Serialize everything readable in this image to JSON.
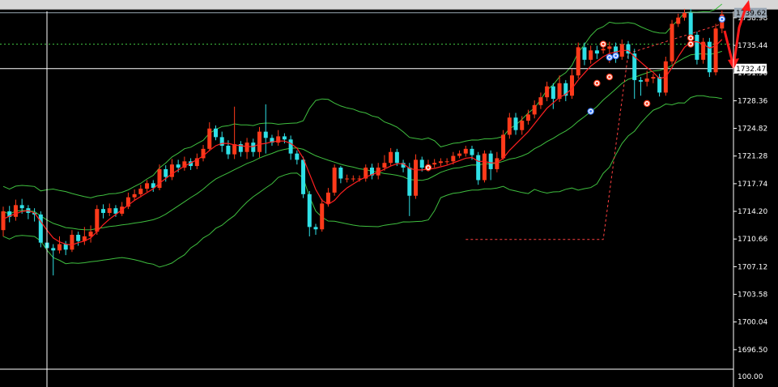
{
  "chart_data": {
    "type": "candlestick",
    "title": "",
    "xlabel": "",
    "ylabel": "",
    "ylim": [
      1694.0,
      1739.8
    ],
    "y_ticks": [
      "1738.98",
      "1735.44",
      "1731.90",
      "1728.36",
      "1724.82",
      "1721.28",
      "1717.74",
      "1714.20",
      "1710.66",
      "1707.12",
      "1703.58",
      "1700.04",
      "1696.50"
    ],
    "y_tick_values": [
      1738.98,
      1735.44,
      1731.9,
      1728.36,
      1724.82,
      1721.28,
      1717.74,
      1714.2,
      1710.66,
      1707.12,
      1703.58,
      1700.04,
      1696.5
    ],
    "price_labels": [
      {
        "text": "1739.62",
        "value": 1739.62,
        "color": "#9aa7b4"
      },
      {
        "text": "1732.47",
        "value": 1732.47,
        "color": "#ffffff"
      }
    ],
    "indicator_label": "100.00",
    "bull_color": "#ff3a1a",
    "bear_color": "#2fe0e6",
    "band_color": "#3fbf3f",
    "ma_color": "#ff2020",
    "candles": [
      [
        1711.8,
        1714.2,
        1711.0,
        1714.8
      ],
      [
        1714.2,
        1713.5,
        1712.8,
        1714.9
      ],
      [
        1713.5,
        1715.0,
        1713.0,
        1715.7
      ],
      [
        1715.0,
        1714.6,
        1713.9,
        1715.8
      ],
      [
        1714.6,
        1714.0,
        1713.2,
        1715.0
      ],
      [
        1714.0,
        1713.8,
        1712.9,
        1714.6
      ],
      [
        1713.8,
        1710.2,
        1709.6,
        1714.2
      ],
      [
        1710.2,
        1709.5,
        1708.9,
        1710.8
      ],
      [
        1709.5,
        1709.2,
        1706.0,
        1710.0
      ],
      [
        1709.2,
        1710.0,
        1708.8,
        1711.0
      ],
      [
        1710.0,
        1709.3,
        1708.6,
        1710.4
      ],
      [
        1709.3,
        1711.2,
        1709.0,
        1711.8
      ],
      [
        1711.2,
        1710.4,
        1709.8,
        1711.6
      ],
      [
        1710.4,
        1711.0,
        1709.9,
        1712.2
      ],
      [
        1711.0,
        1711.6,
        1710.2,
        1712.4
      ],
      [
        1711.6,
        1714.5,
        1711.2,
        1715.0
      ],
      [
        1714.5,
        1714.0,
        1713.3,
        1715.1
      ],
      [
        1714.0,
        1714.6,
        1713.6,
        1715.2
      ],
      [
        1714.6,
        1713.9,
        1713.5,
        1715.0
      ],
      [
        1713.9,
        1714.8,
        1713.6,
        1715.4
      ],
      [
        1714.8,
        1716.0,
        1714.5,
        1716.6
      ],
      [
        1716.0,
        1716.4,
        1715.6,
        1717.0
      ],
      [
        1716.4,
        1717.1,
        1716.0,
        1717.6
      ],
      [
        1717.1,
        1717.8,
        1716.7,
        1718.2
      ],
      [
        1717.8,
        1717.2,
        1716.7,
        1718.2
      ],
      [
        1717.2,
        1719.6,
        1716.9,
        1720.2
      ],
      [
        1719.6,
        1718.6,
        1718.0,
        1720.1
      ],
      [
        1718.6,
        1720.2,
        1718.2,
        1720.9
      ],
      [
        1720.2,
        1719.8,
        1719.2,
        1720.8
      ],
      [
        1719.8,
        1720.6,
        1719.4,
        1721.2
      ],
      [
        1720.6,
        1720.0,
        1719.5,
        1721.0
      ],
      [
        1720.0,
        1721.0,
        1719.6,
        1721.6
      ],
      [
        1721.0,
        1722.2,
        1720.6,
        1722.7
      ],
      [
        1722.2,
        1724.8,
        1721.9,
        1725.6
      ],
      [
        1724.8,
        1723.7,
        1723.3,
        1725.2
      ],
      [
        1723.7,
        1722.6,
        1721.8,
        1724.4
      ],
      [
        1722.6,
        1721.5,
        1720.9,
        1723.3
      ],
      [
        1721.5,
        1722.8,
        1720.9,
        1727.6
      ],
      [
        1722.8,
        1721.8,
        1721.2,
        1723.2
      ],
      [
        1721.8,
        1723.0,
        1720.9,
        1723.6
      ],
      [
        1723.0,
        1721.8,
        1721.2,
        1723.5
      ],
      [
        1721.8,
        1724.4,
        1721.1,
        1725.0
      ],
      [
        1724.4,
        1723.6,
        1721.6,
        1727.9
      ],
      [
        1723.6,
        1723.0,
        1722.6,
        1724.0
      ],
      [
        1723.0,
        1723.8,
        1722.6,
        1724.6
      ],
      [
        1723.8,
        1723.4,
        1722.9,
        1724.2
      ],
      [
        1723.4,
        1721.6,
        1720.8,
        1723.9
      ],
      [
        1721.6,
        1720.8,
        1720.2,
        1722.0
      ],
      [
        1720.8,
        1716.4,
        1715.9,
        1721.2
      ],
      [
        1716.4,
        1712.2,
        1711.0,
        1716.8
      ],
      [
        1712.2,
        1711.9,
        1711.2,
        1712.6
      ],
      [
        1711.9,
        1715.2,
        1711.6,
        1715.8
      ],
      [
        1715.2,
        1716.6,
        1714.8,
        1717.2
      ],
      [
        1716.6,
        1719.8,
        1716.2,
        1720.2
      ],
      [
        1719.8,
        1718.4,
        1717.8,
        1720.0
      ],
      [
        1718.4,
        1718.4,
        1717.9,
        1718.9
      ],
      [
        1718.4,
        1718.4,
        1718.0,
        1718.8
      ],
      [
        1718.4,
        1718.4,
        1718.0,
        1718.8
      ],
      [
        1718.4,
        1719.8,
        1718.0,
        1720.2
      ],
      [
        1719.8,
        1718.8,
        1718.3,
        1720.3
      ],
      [
        1718.8,
        1719.8,
        1718.3,
        1720.4
      ],
      [
        1719.8,
        1720.4,
        1719.4,
        1721.4
      ],
      [
        1720.4,
        1721.8,
        1720.0,
        1722.3
      ],
      [
        1721.8,
        1720.4,
        1720.0,
        1722.2
      ],
      [
        1720.4,
        1719.8,
        1719.2,
        1720.8
      ],
      [
        1719.8,
        1716.2,
        1713.6,
        1720.4
      ],
      [
        1716.2,
        1720.8,
        1715.8,
        1721.5
      ],
      [
        1720.8,
        1719.8,
        1719.3,
        1721.2
      ],
      [
        1719.8,
        1720.2,
        1719.3,
        1720.8
      ],
      [
        1720.2,
        1720.4,
        1719.8,
        1720.9
      ],
      [
        1720.4,
        1720.6,
        1720.0,
        1721.0
      ],
      [
        1720.6,
        1720.6,
        1720.2,
        1721.0
      ],
      [
        1720.6,
        1721.3,
        1720.2,
        1721.8
      ],
      [
        1721.3,
        1721.6,
        1721.0,
        1722.0
      ],
      [
        1721.6,
        1722.2,
        1721.2,
        1722.6
      ],
      [
        1722.2,
        1721.4,
        1720.8,
        1722.6
      ],
      [
        1721.4,
        1718.2,
        1717.6,
        1721.8
      ],
      [
        1718.2,
        1721.6,
        1717.9,
        1722.0
      ],
      [
        1721.6,
        1719.6,
        1718.2,
        1722.0
      ],
      [
        1719.6,
        1721.0,
        1719.2,
        1721.8
      ],
      [
        1721.0,
        1724.0,
        1720.8,
        1724.6
      ],
      [
        1724.0,
        1726.2,
        1723.5,
        1726.8
      ],
      [
        1726.2,
        1724.6,
        1724.0,
        1726.8
      ],
      [
        1724.6,
        1725.8,
        1724.0,
        1726.4
      ],
      [
        1725.8,
        1726.6,
        1725.3,
        1727.2
      ],
      [
        1726.6,
        1727.8,
        1726.1,
        1728.4
      ],
      [
        1727.8,
        1728.8,
        1727.3,
        1729.4
      ],
      [
        1728.8,
        1730.2,
        1728.3,
        1730.8
      ],
      [
        1730.2,
        1728.6,
        1727.3,
        1730.6
      ],
      [
        1728.6,
        1730.6,
        1728.2,
        1731.6
      ],
      [
        1730.6,
        1729.0,
        1728.3,
        1731.0
      ],
      [
        1729.0,
        1731.6,
        1728.6,
        1732.4
      ],
      [
        1731.6,
        1735.2,
        1731.2,
        1735.8
      ],
      [
        1735.2,
        1733.6,
        1732.9,
        1735.8
      ],
      [
        1733.6,
        1734.8,
        1733.1,
        1735.4
      ],
      [
        1734.8,
        1734.4,
        1733.7,
        1735.4
      ],
      [
        1734.8,
        1735.0,
        1734.4,
        1735.6
      ],
      [
        1735.0,
        1735.3,
        1733.2,
        1735.9
      ],
      [
        1735.3,
        1734.0,
        1733.2,
        1735.8
      ],
      [
        1734.0,
        1735.6,
        1733.6,
        1736.2
      ],
      [
        1735.6,
        1734.4,
        1733.7,
        1736.0
      ],
      [
        1734.4,
        1731.0,
        1728.6,
        1735.0
      ],
      [
        1731.0,
        1730.8,
        1729.0,
        1731.4
      ],
      [
        1730.8,
        1731.2,
        1730.2,
        1732.2
      ],
      [
        1731.2,
        1731.4,
        1730.6,
        1731.8
      ],
      [
        1731.4,
        1729.4,
        1728.9,
        1731.8
      ],
      [
        1729.4,
        1733.4,
        1729.0,
        1734.0
      ],
      [
        1733.4,
        1738.2,
        1733.0,
        1738.7
      ],
      [
        1738.2,
        1739.0,
        1737.8,
        1739.5
      ],
      [
        1739.0,
        1739.6,
        1738.6,
        1740.1
      ],
      [
        1739.6,
        1736.8,
        1736.2,
        1740.1
      ],
      [
        1736.8,
        1733.6,
        1733.0,
        1737.2
      ],
      [
        1733.6,
        1735.9,
        1733.1,
        1736.4
      ],
      [
        1735.9,
        1732.0,
        1731.4,
        1736.4
      ],
      [
        1732.0,
        1737.6,
        1731.6,
        1738.2
      ],
      [
        1737.6,
        1739.4,
        1737.0,
        1739.9
      ]
    ],
    "moving_average": [
      1713.2,
      1713.6,
      1713.9,
      1714.2,
      1714.3,
      1714.0,
      1712.9,
      1711.8,
      1710.8,
      1710.3,
      1710.0,
      1709.9,
      1710.2,
      1710.4,
      1710.8,
      1711.6,
      1712.5,
      1713.2,
      1713.8,
      1714.4,
      1715.0,
      1715.6,
      1716.1,
      1716.6,
      1717.1,
      1717.8,
      1718.4,
      1719.0,
      1719.5,
      1720.0,
      1720.4,
      1720.8,
      1721.3,
      1722.0,
      1722.6,
      1722.9,
      1722.9,
      1722.7,
      1722.6,
      1722.5,
      1722.5,
      1722.8,
      1722.9,
      1723.1,
      1723.2,
      1723.2,
      1722.9,
      1722.3,
      1721.0,
      1719.0,
      1717.0,
      1715.6,
      1715.1,
      1715.6,
      1716.5,
      1717.2,
      1717.7,
      1718.2,
      1718.6,
      1718.9,
      1719.2,
      1719.6,
      1720.0,
      1720.3,
      1720.3,
      1719.7,
      1719.5,
      1719.5,
      1719.6,
      1719.7,
      1719.9,
      1720.1,
      1720.4,
      1720.7,
      1721.0,
      1721.1,
      1720.6,
      1720.6,
      1720.4,
      1720.4,
      1721.0,
      1722.0,
      1722.8,
      1723.6,
      1724.4,
      1725.4,
      1726.4,
      1727.4,
      1728.1,
      1728.8,
      1729.2,
      1729.9,
      1731.0,
      1731.9,
      1732.8,
      1733.4,
      1734.0,
      1734.4,
      1734.6,
      1734.8,
      1734.8,
      1734.0,
      1733.3,
      1732.6,
      1732.0,
      1731.2,
      1731.4,
      1732.6,
      1734.0,
      1735.2,
      1735.9,
      1735.9,
      1735.6,
      1735.1,
      1735.4,
      1736.2
    ],
    "dotted_levels": [
      1735.6
    ],
    "dashed_path": [
      [
        74,
        1710.6
      ],
      [
        96,
        1710.6
      ],
      [
        100,
        1734.4
      ],
      [
        115,
        1738.2
      ]
    ],
    "markers": [
      {
        "index": 96,
        "value": 1735.6,
        "kind": "sell"
      },
      {
        "index": 97,
        "value": 1733.9,
        "kind": "buy"
      },
      {
        "index": 98,
        "value": 1734.1,
        "kind": "buy"
      },
      {
        "index": 97,
        "value": 1731.4,
        "kind": "sell"
      },
      {
        "index": 95,
        "value": 1730.6,
        "kind": "sell"
      },
      {
        "index": 94,
        "value": 1727.0,
        "kind": "buy"
      },
      {
        "index": 103,
        "value": 1728.0,
        "kind": "sell"
      },
      {
        "index": 68,
        "value": 1719.8,
        "kind": "sell"
      },
      {
        "index": 110,
        "value": 1736.4,
        "kind": "sell"
      },
      {
        "index": 110,
        "value": 1735.6,
        "kind": "sell"
      },
      {
        "index": 115,
        "value": 1738.8,
        "kind": "buy"
      }
    ]
  }
}
